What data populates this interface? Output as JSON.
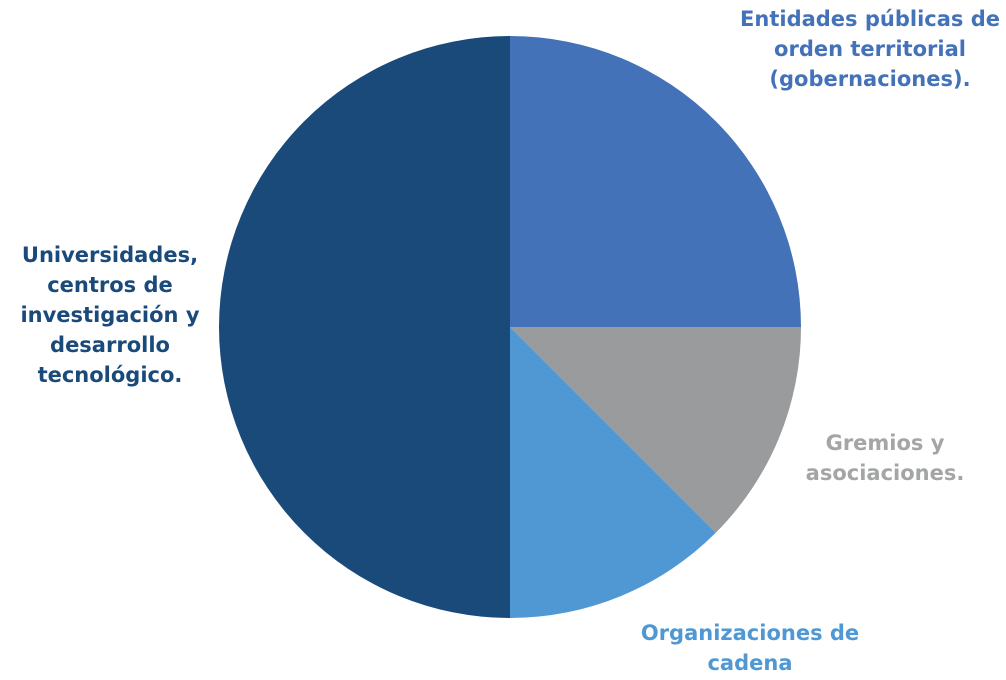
{
  "chart_data": {
    "type": "pie",
    "categories": [
      "Entidades públicas de orden territorial (gobernaciones).",
      "Gremios y asociaciones.",
      "Organizaciones de cadena",
      "Universidades, centros de investigación y desarrollo tecnológico."
    ],
    "values": [
      25,
      12.5,
      12.5,
      50
    ],
    "colors": [
      "#4472b8",
      "#999b9c",
      "#4f98d3",
      "#1a4a7a"
    ]
  }
}
